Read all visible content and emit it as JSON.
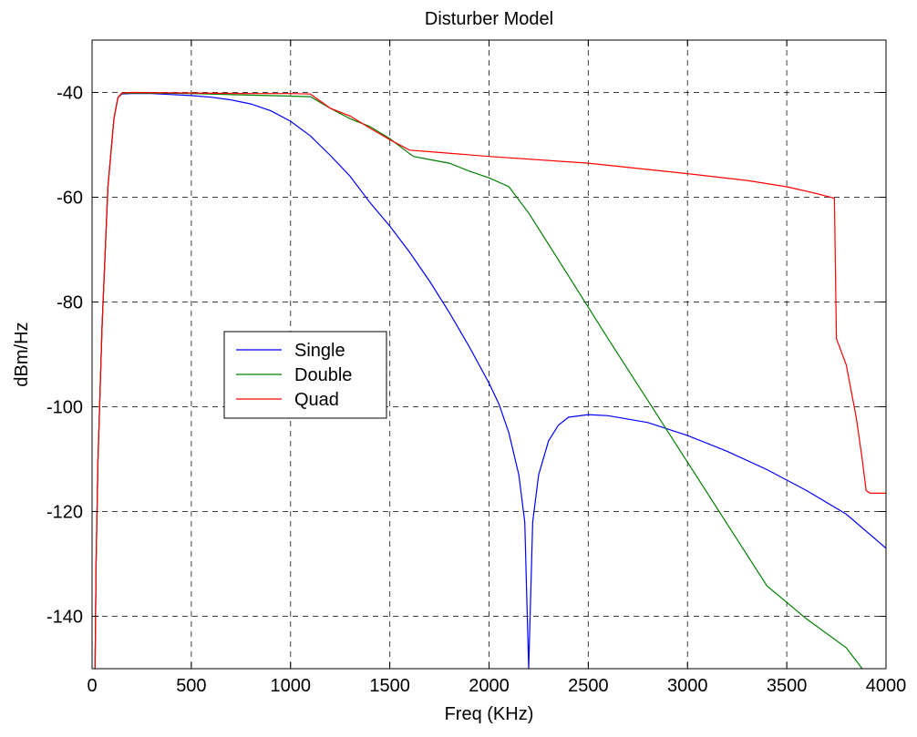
{
  "chart_data": {
    "type": "line",
    "title": "Disturber Model",
    "xlabel": "Freq (KHz)",
    "ylabel": "dBm/Hz",
    "xlim": [
      0,
      4000
    ],
    "ylim": [
      -150,
      -30
    ],
    "xticks": [
      0,
      500,
      1000,
      1500,
      2000,
      2500,
      3000,
      3500,
      4000
    ],
    "yticks": [
      -140,
      -120,
      -100,
      -80,
      -60,
      -40
    ],
    "grid": true,
    "legend_position": "center-left",
    "series": [
      {
        "name": "Single",
        "color": "#0000ff",
        "points": [
          [
            15,
            -150
          ],
          [
            20,
            -130
          ],
          [
            30,
            -110
          ],
          [
            50,
            -85
          ],
          [
            80,
            -58
          ],
          [
            110,
            -45
          ],
          [
            130,
            -41
          ],
          [
            150,
            -40.3
          ],
          [
            200,
            -40.2
          ],
          [
            300,
            -40.2
          ],
          [
            400,
            -40.4
          ],
          [
            500,
            -40.6
          ],
          [
            600,
            -40.9
          ],
          [
            700,
            -41.4
          ],
          [
            800,
            -42.2
          ],
          [
            900,
            -43.5
          ],
          [
            1000,
            -45.5
          ],
          [
            1100,
            -48.3
          ],
          [
            1200,
            -52
          ],
          [
            1300,
            -56
          ],
          [
            1400,
            -61
          ],
          [
            1500,
            -65.5
          ],
          [
            1600,
            -70.5
          ],
          [
            1700,
            -76
          ],
          [
            1800,
            -82
          ],
          [
            1900,
            -88.5
          ],
          [
            2000,
            -95.5
          ],
          [
            2050,
            -99.5
          ],
          [
            2100,
            -105
          ],
          [
            2150,
            -113
          ],
          [
            2180,
            -122
          ],
          [
            2200,
            -150
          ],
          [
            2220,
            -122
          ],
          [
            2250,
            -113
          ],
          [
            2300,
            -106.5
          ],
          [
            2350,
            -103.5
          ],
          [
            2400,
            -102
          ],
          [
            2500,
            -101.5
          ],
          [
            2600,
            -101.7
          ],
          [
            2800,
            -103
          ],
          [
            3000,
            -105.5
          ],
          [
            3200,
            -108.5
          ],
          [
            3400,
            -112
          ],
          [
            3600,
            -116
          ],
          [
            3800,
            -120.5
          ],
          [
            4000,
            -127
          ]
        ]
      },
      {
        "name": "Double",
        "color": "#008000",
        "points": [
          [
            15,
            -150
          ],
          [
            20,
            -130
          ],
          [
            30,
            -110
          ],
          [
            50,
            -85
          ],
          [
            80,
            -58
          ],
          [
            110,
            -45
          ],
          [
            130,
            -41
          ],
          [
            150,
            -40.2
          ],
          [
            200,
            -40.1
          ],
          [
            500,
            -40.2
          ],
          [
            800,
            -40.5
          ],
          [
            1000,
            -40.7
          ],
          [
            1100,
            -40.8
          ],
          [
            1200,
            -43
          ],
          [
            1300,
            -45
          ],
          [
            1400,
            -46.5
          ],
          [
            1500,
            -48.8
          ],
          [
            1600,
            -51.7
          ],
          [
            1620,
            -52.2
          ],
          [
            1700,
            -52.8
          ],
          [
            1800,
            -53.5
          ],
          [
            1900,
            -55
          ],
          [
            2000,
            -56.3
          ],
          [
            2100,
            -58
          ],
          [
            2200,
            -63
          ],
          [
            2300,
            -69
          ],
          [
            2400,
            -75
          ],
          [
            2500,
            -81
          ],
          [
            2600,
            -87
          ],
          [
            2800,
            -98.8
          ],
          [
            3000,
            -110.6
          ],
          [
            3200,
            -122.4
          ],
          [
            3400,
            -134.2
          ],
          [
            3600,
            -140.5
          ],
          [
            3800,
            -146
          ],
          [
            3880,
            -150
          ]
        ]
      },
      {
        "name": "Quad",
        "color": "#ff0000",
        "points": [
          [
            15,
            -150
          ],
          [
            20,
            -130
          ],
          [
            30,
            -110
          ],
          [
            50,
            -85
          ],
          [
            80,
            -58
          ],
          [
            110,
            -45
          ],
          [
            130,
            -41
          ],
          [
            150,
            -40.1
          ],
          [
            200,
            -40
          ],
          [
            500,
            -40.1
          ],
          [
            800,
            -40.2
          ],
          [
            1000,
            -40.2
          ],
          [
            1100,
            -40.3
          ],
          [
            1200,
            -43
          ],
          [
            1300,
            -44.5
          ],
          [
            1400,
            -46.8
          ],
          [
            1500,
            -49
          ],
          [
            1600,
            -51
          ],
          [
            1700,
            -51.3
          ],
          [
            2000,
            -52.2
          ],
          [
            2500,
            -53.5
          ],
          [
            3000,
            -55.5
          ],
          [
            3300,
            -56.8
          ],
          [
            3500,
            -58
          ],
          [
            3650,
            -59.3
          ],
          [
            3740,
            -60.2
          ],
          [
            3750,
            -87
          ],
          [
            3800,
            -92
          ],
          [
            3850,
            -102
          ],
          [
            3880,
            -110
          ],
          [
            3900,
            -116
          ],
          [
            3920,
            -116.5
          ],
          [
            4000,
            -116.5
          ]
        ]
      }
    ]
  }
}
